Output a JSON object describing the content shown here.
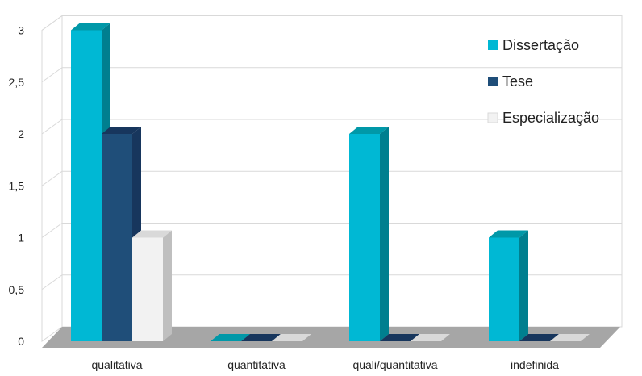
{
  "chart_data": {
    "type": "bar",
    "categories": [
      "qualitativa",
      "quantitativa",
      "quali/quantitativa",
      "indefinida"
    ],
    "series": [
      {
        "name": "Dissertação",
        "values": [
          3,
          0,
          2,
          1
        ],
        "color": "#00B8D4",
        "side_color": "#007F8F",
        "top_color": "#0098A8"
      },
      {
        "name": "Tese",
        "values": [
          2,
          0,
          0,
          0
        ],
        "color": "#1F4E79",
        "side_color": "#17365D",
        "top_color": "#17365D"
      },
      {
        "name": "Especialização",
        "values": [
          1,
          0,
          0,
          0
        ],
        "color": "#F2F2F2",
        "side_color": "#BFBFBF",
        "top_color": "#D9D9D9"
      }
    ],
    "yticks": [
      "0",
      "0,5",
      "1",
      "1,5",
      "2",
      "2,5",
      "3"
    ],
    "ylim": [
      0,
      3
    ],
    "grid": true,
    "legend_position": "top-right"
  }
}
